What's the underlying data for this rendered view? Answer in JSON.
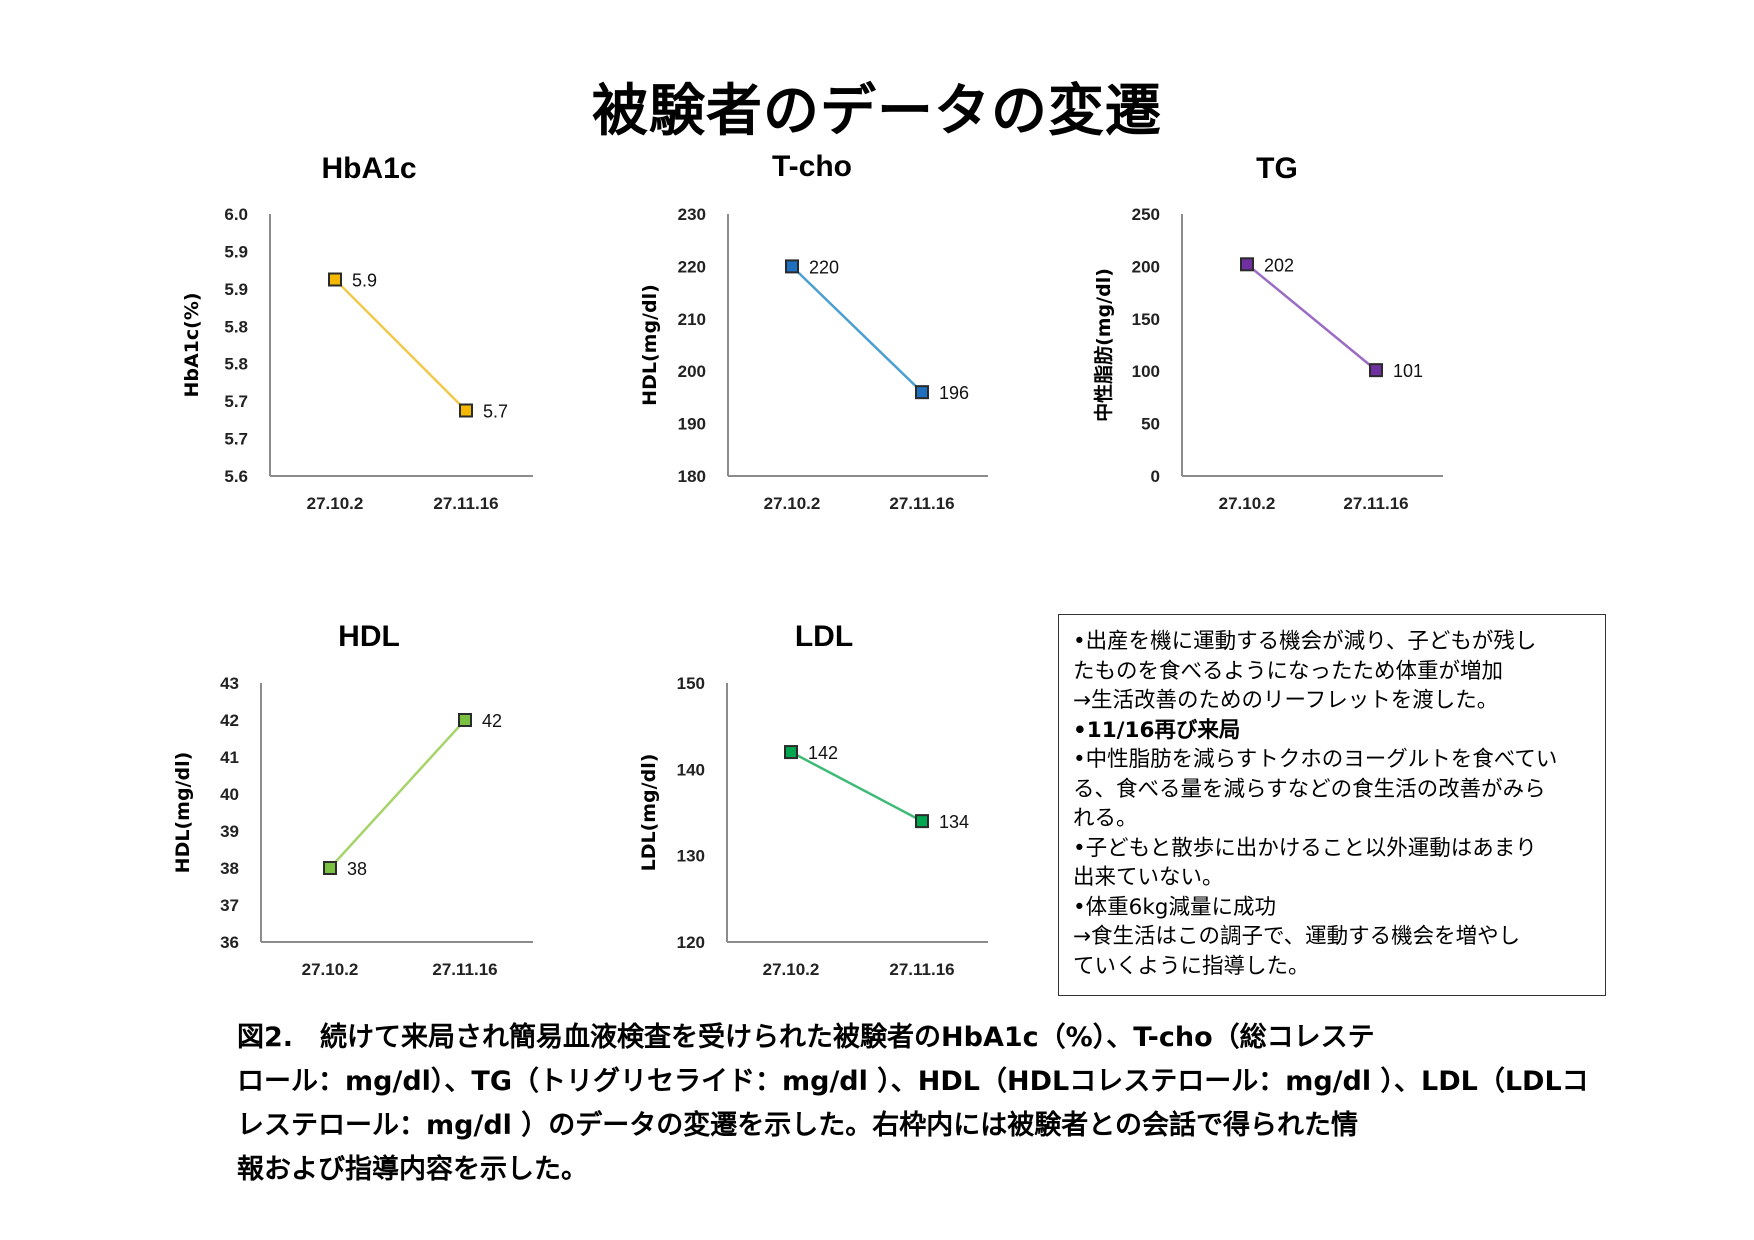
{
  "page": {
    "title": "被験者のデータの変遷",
    "notes": [
      "•出産を機に運動する機会が減り、子どもが残し",
      "たものを食べるようになったため体重が増加",
      "→生活改善のためのリーフレットを渡した。",
      "•11/16再び来局",
      "•中性脂肪を減らすトクホのヨーグルトを食べてい",
      "る、食べる量を減らすなどの食生活の改善がみら",
      "れる。",
      "•子どもと散歩に出かけること以外運動はあまり",
      "出来ていない。",
      "•体重6kg減量に成功",
      "→食生活はこの調子で、運動する機会を増やし",
      "ていくように指導した。"
    ],
    "caption": [
      "図2.　続けて来局され簡易血液検査を受けられた被験者のHbA1c（%）、T-cho（総コレステ",
      "ロール：mg/dl）、TG（トリグリセライド：mg/dl ）、HDL（HDLコレステロール：mg/dl ）、LDL（LDLコ",
      "レステロール：mg/dl ）のデータの変遷を示した。右枠内には被験者との会話で得られた情",
      "報および指導内容を示した。"
    ]
  },
  "chart_data": [
    {
      "type": "line",
      "title": "HbA1c",
      "ylabel": "HbA1c(%)",
      "xlabel": "",
      "categories": [
        "27.10.2",
        "27.11.16"
      ],
      "values": [
        5.9,
        5.7
      ],
      "data_labels": [
        "5.9",
        "5.7"
      ],
      "ylim": [
        5.6,
        6.0
      ],
      "yticks": [
        "6.0",
        "5.9",
        "5.9",
        "5.8",
        "5.8",
        "5.7",
        "5.7",
        "5.6"
      ],
      "color": "#f5b800",
      "line_color": "#f2c84b",
      "grid": false,
      "legend": "none"
    },
    {
      "type": "line",
      "title": "T-cho",
      "ylabel": "HDL(mg/dl)",
      "xlabel": "",
      "categories": [
        "27.10.2",
        "27.11.16"
      ],
      "values": [
        220,
        196
      ],
      "data_labels": [
        "220",
        "196"
      ],
      "ylim": [
        180,
        230
      ],
      "yticks": [
        "230",
        "220",
        "210",
        "200",
        "190",
        "180"
      ],
      "color": "#1f6fc0",
      "line_color": "#4a9fd0",
      "grid": false,
      "legend": "none"
    },
    {
      "type": "line",
      "title": "TG",
      "ylabel": "中性脂肪(mg/dl)",
      "xlabel": "",
      "categories": [
        "27.10.2",
        "27.11.16"
      ],
      "values": [
        202,
        101
      ],
      "data_labels": [
        "202",
        "101"
      ],
      "ylim": [
        0,
        250
      ],
      "yticks": [
        "250",
        "200",
        "150",
        "100",
        "50",
        "0"
      ],
      "color": "#7030a0",
      "line_color": "#9b6cc4",
      "grid": false,
      "legend": "none"
    },
    {
      "type": "line",
      "title": "HDL",
      "ylabel": "HDL(mg/dl)",
      "xlabel": "",
      "categories": [
        "27.10.2",
        "27.11.16"
      ],
      "values": [
        38,
        42
      ],
      "data_labels": [
        "38",
        "42"
      ],
      "ylim": [
        36,
        43
      ],
      "yticks": [
        "43",
        "42",
        "41",
        "40",
        "39",
        "38",
        "37",
        "36"
      ],
      "color": "#7ac142",
      "line_color": "#a6d46a",
      "grid": false,
      "legend": "none"
    },
    {
      "type": "line",
      "title": "LDL",
      "ylabel": "LDL(mg/dl)",
      "xlabel": "",
      "categories": [
        "27.10.2",
        "27.11.16"
      ],
      "values": [
        142,
        134
      ],
      "data_labels": [
        "142",
        "134"
      ],
      "ylim": [
        120,
        150
      ],
      "yticks": [
        "150",
        "140",
        "130",
        "120"
      ],
      "color": "#00a550",
      "line_color": "#3dbb76",
      "grid": false,
      "legend": "none"
    }
  ]
}
